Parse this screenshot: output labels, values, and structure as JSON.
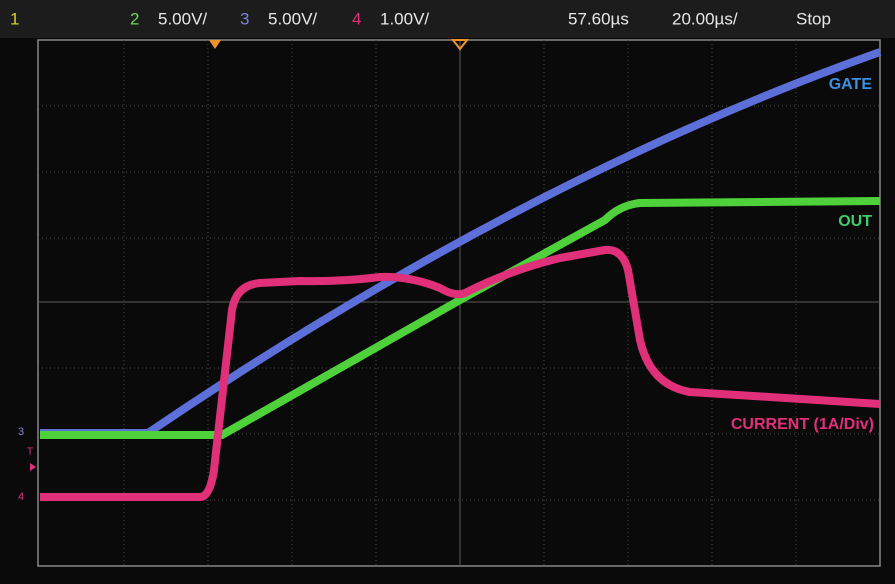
{
  "header": {
    "ch1": "1",
    "ch2": "2",
    "ch2_scale": "5.00V/",
    "ch3": "3",
    "ch3_scale": "5.00V/",
    "ch4": "4",
    "ch4_scale": "1.00V/",
    "delay": "57.60µs",
    "timebase": "20.00µs/",
    "status": "Stop"
  },
  "traces": {
    "gate": "GATE",
    "out": "OUT",
    "current": "CURRENT (1A/Div)"
  },
  "markers": {
    "ch3": "3",
    "trigger": "T",
    "ch4": "4"
  }
}
